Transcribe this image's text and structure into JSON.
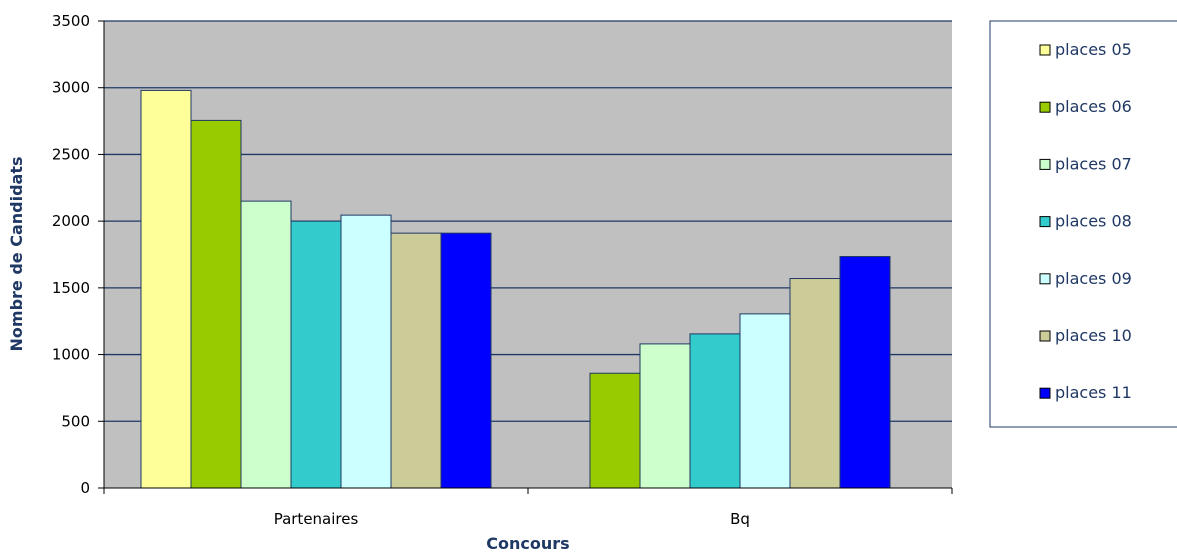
{
  "chart_data": {
    "type": "bar",
    "title": "",
    "xlabel": "Concours",
    "ylabel": "Nombre de Candidats",
    "ylim": [
      0,
      3500
    ],
    "yticks": [
      0,
      500,
      1000,
      1500,
      2000,
      2500,
      3000,
      3500
    ],
    "categories": [
      "Partenaires",
      "Bq"
    ],
    "grid": true,
    "legend_position": "right",
    "series": [
      {
        "name": "places 05",
        "color": "#ffff99",
        "values": [
          2980,
          null
        ]
      },
      {
        "name": "places 06",
        "color": "#99cc00",
        "values": [
          2755,
          860
        ]
      },
      {
        "name": "places 07",
        "color": "#ccffcc",
        "values": [
          2150,
          1080
        ]
      },
      {
        "name": "places 08",
        "color": "#33cccc",
        "values": [
          2000,
          1155
        ]
      },
      {
        "name": "places 09",
        "color": "#ccffff",
        "values": [
          2045,
          1305
        ]
      },
      {
        "name": "places 10",
        "color": "#cccc99",
        "values": [
          1910,
          1570
        ]
      },
      {
        "name": "places 11",
        "color": "#0000ff",
        "values": [
          1910,
          1735
        ]
      }
    ]
  },
  "colors": {
    "plot_background": "#c0c0c0",
    "gridline": "#1f3864",
    "bar_stroke": "#1f3864",
    "axis_title": "#1f3864"
  }
}
